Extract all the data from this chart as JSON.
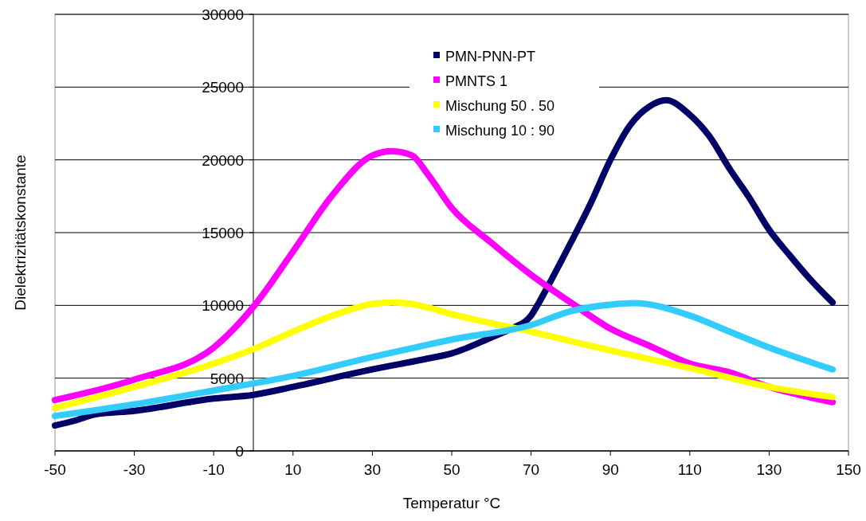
{
  "chart_data": {
    "type": "line",
    "xlabel": "Temperatur °C",
    "ylabel": "Dielektrizitätskonstante",
    "xlim": [
      -50,
      150
    ],
    "xticks": [
      -50,
      -30,
      -10,
      10,
      30,
      50,
      70,
      90,
      110,
      130,
      150
    ],
    "ylim": [
      0,
      30000
    ],
    "yticks": [
      0,
      5000,
      10000,
      15000,
      20000,
      25000,
      30000
    ],
    "grid": "y",
    "legend": "top",
    "series": [
      {
        "name": "PMN-PNN-PT",
        "color": "#000066",
        "x": [
          -50,
          -45,
          -40,
          -30,
          -10,
          0,
          10,
          30,
          44,
          50,
          60,
          65,
          70,
          72,
          75,
          80,
          85,
          90,
          95,
          100,
          104,
          110,
          115,
          120,
          125,
          130,
          135,
          140,
          146
        ],
        "values": [
          1750,
          2080,
          2500,
          2750,
          3600,
          3850,
          4400,
          5600,
          6350,
          6700,
          7800,
          8400,
          9300,
          10200,
          11700,
          14300,
          17000,
          20000,
          22400,
          23700,
          24100,
          23100,
          21600,
          19400,
          17400,
          15200,
          13500,
          11900,
          10200
        ]
      },
      {
        "name": "PMNTS 1",
        "color": "#ff00ff",
        "x": [
          -50,
          -30,
          -10,
          0,
          10,
          20,
          30,
          35,
          40,
          44,
          50,
          60,
          70,
          80,
          90,
          100,
          110,
          120,
          130,
          140,
          146
        ],
        "values": [
          3500,
          4900,
          7100,
          9900,
          13700,
          17600,
          20300,
          20600,
          20300,
          19000,
          16700,
          14300,
          12100,
          10200,
          8400,
          7200,
          6000,
          5400,
          4400,
          3700,
          3350
        ]
      },
      {
        "name": "Mischung 50 . 50",
        "color": "#ffff00",
        "x": [
          -50,
          -30,
          -10,
          0,
          10,
          20,
          30,
          35,
          40,
          44,
          50,
          70,
          90,
          110,
          130,
          146
        ],
        "values": [
          2950,
          4400,
          6000,
          7000,
          8200,
          9300,
          10100,
          10200,
          10100,
          9850,
          9400,
          8200,
          6900,
          5700,
          4400,
          3700
        ]
      },
      {
        "name": "Mischung 10 : 90",
        "color": "#33ccff",
        "x": [
          -50,
          -30,
          -10,
          10,
          30,
          44,
          50,
          70,
          80,
          90,
          96,
          110,
          120,
          130,
          146
        ],
        "values": [
          2400,
          3200,
          4150,
          5150,
          6450,
          7300,
          7650,
          8650,
          9600,
          10050,
          10150,
          9300,
          8200,
          7100,
          5600
        ]
      }
    ]
  }
}
